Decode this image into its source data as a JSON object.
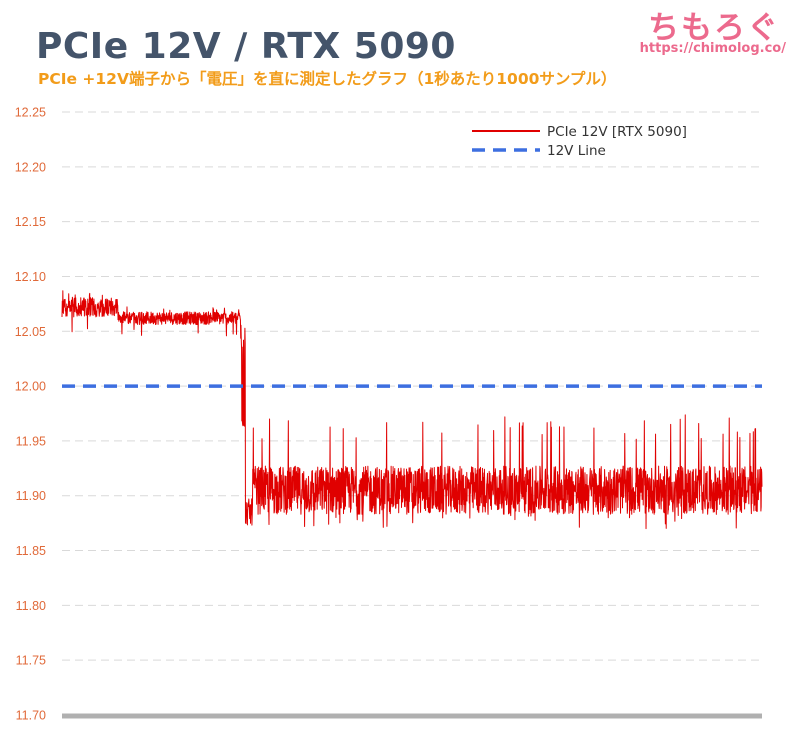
{
  "header": {
    "title": "PCIe 12V / RTX 5090",
    "subtitle": "PCIe +12V端子から「電圧」を直に測定したグラフ（1秒あたり1000サンプル）",
    "logo_text": "ちもろぐ",
    "logo_url": "https://chimolog.co/"
  },
  "colors": {
    "title": "#44546a",
    "subtitle": "#f29c1a",
    "logo": "#ec6a8d",
    "series_voltage": "#e00000",
    "series_reference": "#3d6fe0",
    "tick_labels": "#e06a3a",
    "gridlines": "#d9d9d9",
    "baseline": "#b0b0b0"
  },
  "chart_data": {
    "type": "line",
    "xlabel": "",
    "ylabel": "",
    "ylim": [
      11.7,
      12.25
    ],
    "yticks": [
      "12.25",
      "12.20",
      "12.15",
      "12.10",
      "12.05",
      "12.00",
      "11.95",
      "11.90",
      "11.85",
      "11.80",
      "11.75",
      "11.70"
    ],
    "x_tick_labels_shown": false,
    "grid": {
      "horizontal": true,
      "vertical": false,
      "style": "dashed"
    },
    "legend": {
      "placement": "top-right"
    },
    "series": [
      {
        "name": "PCIe 12V [RTX 5090]",
        "style": "solid",
        "samples": 2500,
        "segments": [
          {
            "x_range": [
              0.0,
              0.08
            ],
            "mean": 12.072,
            "min": 12.045,
            "max": 12.088
          },
          {
            "x_range": [
              0.08,
              0.255
            ],
            "mean": 12.062,
            "min": 12.045,
            "max": 12.073
          },
          {
            "x_range": [
              0.255,
              0.262
            ],
            "mean": 12.04,
            "min": 11.962,
            "max": 12.075
          },
          {
            "x_range": [
              0.262,
              0.272
            ],
            "mean": 11.885,
            "min": 11.862,
            "max": 11.92
          },
          {
            "x_range": [
              0.272,
              1.0
            ],
            "mean": 11.905,
            "min": 11.87,
            "max": 11.975
          }
        ]
      },
      {
        "name": "12V Line",
        "style": "dashed",
        "y": 12.0
      }
    ]
  }
}
